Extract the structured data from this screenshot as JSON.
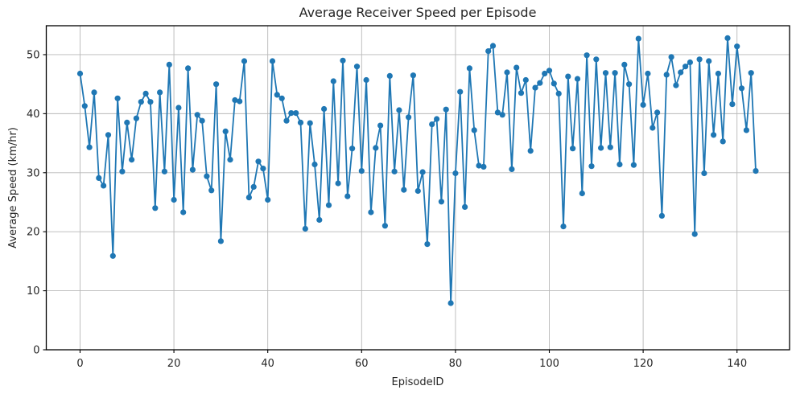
{
  "chart_data": {
    "type": "line",
    "title": "Average Receiver Speed per Episode",
    "xlabel": "EpisodeID",
    "ylabel": "Average Speed (km/hr)",
    "xlim": [
      -7.2,
      151.2
    ],
    "ylim": [
      0,
      54.9
    ],
    "xticks": [
      0,
      20,
      40,
      60,
      80,
      100,
      120,
      140
    ],
    "yticks": [
      0,
      10,
      20,
      30,
      40,
      50
    ],
    "grid": true,
    "legend": "none",
    "line_color": "#1f77b4",
    "grid_color": "#b8b8b8",
    "spine_color": "#000000",
    "marker": "circle",
    "x_start": 0,
    "x_step": 1,
    "values": [
      46.8,
      41.3,
      34.3,
      43.6,
      29.1,
      27.8,
      36.4,
      15.9,
      42.6,
      30.2,
      38.5,
      32.2,
      39.2,
      42.0,
      43.4,
      42.0,
      24.0,
      43.6,
      30.2,
      48.3,
      25.4,
      41.0,
      23.3,
      47.7,
      30.5,
      39.8,
      38.8,
      29.4,
      27.0,
      45.0,
      18.4,
      37.0,
      32.2,
      42.3,
      42.1,
      48.9,
      25.8,
      27.6,
      31.9,
      30.7,
      25.4,
      48.9,
      43.2,
      42.6,
      38.8,
      40.1,
      40.1,
      38.5,
      20.5,
      38.4,
      31.4,
      22.0,
      40.8,
      24.5,
      45.5,
      28.2,
      49.0,
      26.0,
      34.1,
      48.0,
      30.3,
      45.7,
      23.3,
      34.2,
      38.0,
      21.0,
      46.4,
      30.2,
      40.6,
      27.1,
      39.4,
      46.5,
      26.9,
      30.1,
      17.9,
      38.2,
      39.1,
      25.1,
      40.7,
      7.9,
      29.9,
      43.7,
      24.2,
      47.7,
      37.2,
      31.2,
      31.0,
      50.6,
      51.5,
      40.2,
      39.8,
      47.0,
      30.6,
      47.8,
      43.5,
      45.7,
      33.7,
      44.4,
      45.2,
      46.8,
      47.3,
      45.1,
      43.4,
      20.9,
      46.3,
      34.1,
      45.9,
      26.5,
      49.9,
      31.1,
      49.2,
      34.2,
      46.9,
      34.3,
      46.9,
      31.4,
      48.3,
      45.0,
      31.3,
      52.7,
      41.5,
      46.8,
      37.6,
      40.2,
      22.7,
      46.6,
      49.6,
      44.8,
      47.0,
      48.0,
      48.7,
      19.6,
      49.2,
      29.9,
      48.9,
      36.4,
      46.8,
      35.3,
      52.8,
      41.6,
      51.4,
      44.3,
      37.2,
      46.9,
      30.3
    ]
  }
}
